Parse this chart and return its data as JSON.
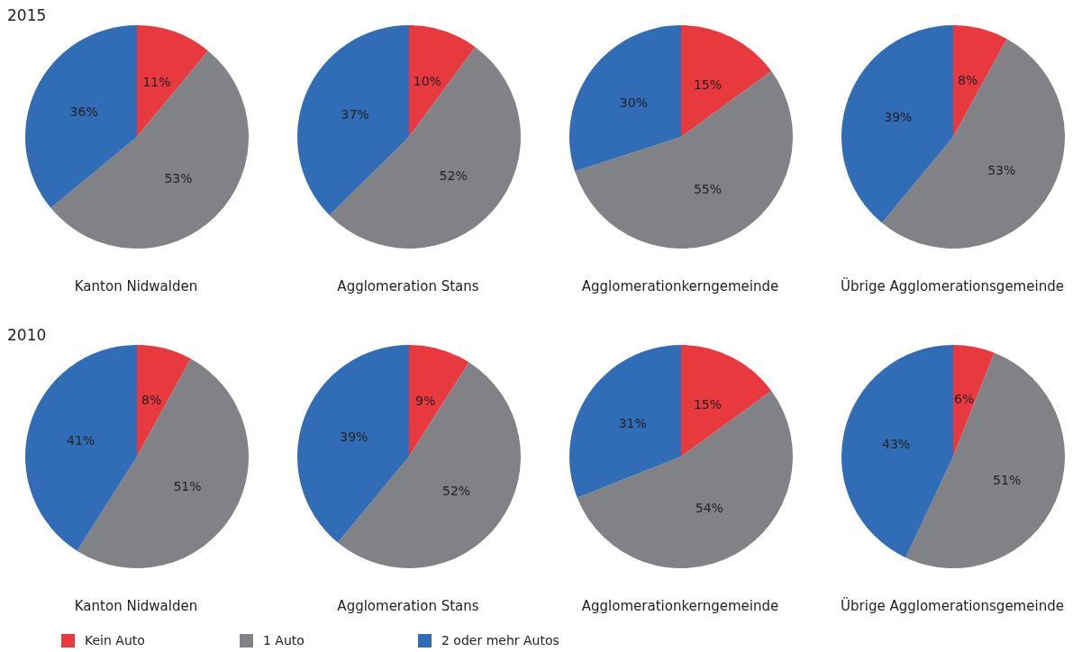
{
  "chart_data": [
    {
      "type": "pie",
      "title": "Kanton Nidwalden",
      "annotations": [
        "2015"
      ],
      "categories": [
        "Kein Auto",
        "1 Auto",
        "2 oder mehr Autos"
      ],
      "values": [
        11,
        53,
        36
      ],
      "value_labels": [
        "11%",
        "53%",
        "36%"
      ],
      "colors": [
        "#e8393f",
        "#818285",
        "#316cb6"
      ],
      "legend": "bottom"
    },
    {
      "type": "pie",
      "title": "Agglomeration Stans",
      "categories": [
        null,
        null,
        null
      ],
      "values": [
        10,
        52,
        37
      ],
      "value_labels": [
        "10%",
        "52%",
        "37%"
      ],
      "colors": [
        "#e8393f",
        "#818285",
        "#316cb6"
      ]
    },
    {
      "type": "pie",
      "title": "Agglomerationkerngemeinde",
      "categories": [
        null,
        null,
        null
      ],
      "values": [
        15,
        55,
        30
      ],
      "value_labels": [
        "15%",
        "55%",
        "30%"
      ],
      "colors": [
        "#e8393f",
        "#818285",
        "#316cb6"
      ]
    },
    {
      "type": "pie",
      "title": "Übrige Agglomerationsgemeinde",
      "categories": [
        null,
        null,
        null
      ],
      "values": [
        8,
        53,
        39
      ],
      "value_labels": [
        "8%",
        "53%",
        "39%"
      ],
      "colors": [
        "#e8393f",
        "#818285",
        "#316cb6"
      ]
    },
    {
      "type": "pie",
      "title": "Kanton Nidwalden",
      "annotations": [
        "2010"
      ],
      "categories": [
        null,
        null,
        null
      ],
      "values": [
        8,
        51,
        41
      ],
      "value_labels": [
        "8%",
        "51%",
        "41%"
      ],
      "colors": [
        "#e8393f",
        "#818285",
        "#316cb6"
      ]
    },
    {
      "type": "pie",
      "title": "Agglomeration Stans",
      "categories": [
        null,
        null,
        null
      ],
      "values": [
        9,
        52,
        39
      ],
      "value_labels": [
        "9%",
        "52%",
        "39%"
      ],
      "colors": [
        "#e8393f",
        "#818285",
        "#316cb6"
      ]
    },
    {
      "type": "pie",
      "title": "Agglomerationkerngemeinde",
      "categories": [
        null,
        null,
        null
      ],
      "values": [
        15,
        54,
        31
      ],
      "value_labels": [
        "15%",
        "54%",
        "31%"
      ],
      "colors": [
        "#e8393f",
        "#818285",
        "#316cb6"
      ]
    },
    {
      "type": "pie",
      "title": "Übrige Agglomerationsgemeinde",
      "categories": [
        null,
        null,
        null
      ],
      "values": [
        6,
        51,
        43
      ],
      "value_labels": [
        "6%",
        "51%",
        "43%"
      ],
      "colors": [
        "#e8393f",
        "#818285",
        "#316cb6"
      ]
    }
  ]
}
